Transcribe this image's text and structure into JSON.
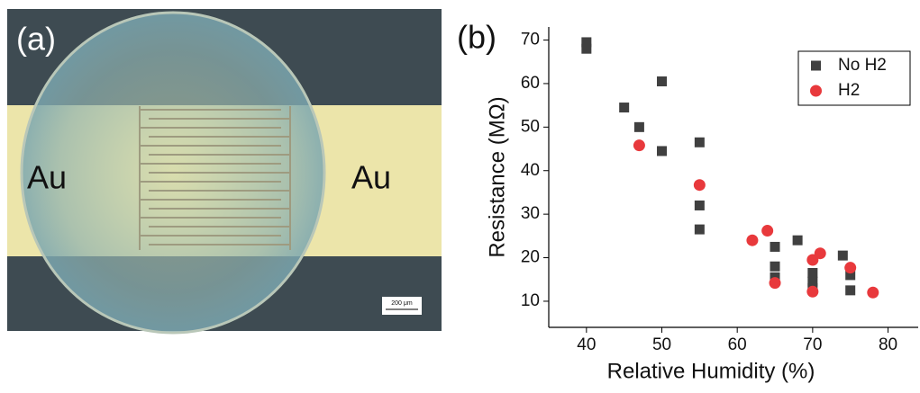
{
  "photo": {
    "label": "(a)",
    "left_label": "Au",
    "right_label": "Au",
    "scale_bar": "200 μm"
  },
  "chart_data": {
    "type": "scatter",
    "panel_label": "(b)",
    "x_label": "Relative Humidity (%)",
    "y_label": "Resistance (MΩ)",
    "xlim": [
      35,
      84
    ],
    "ylim": [
      4,
      73
    ],
    "xticks": [
      40,
      50,
      60,
      70,
      80
    ],
    "yticks": [
      10,
      20,
      30,
      40,
      50,
      60,
      70
    ],
    "legend": "top-right",
    "series": [
      {
        "name": "No H2",
        "color": "#404040",
        "marker": "square",
        "x": [
          40,
          40,
          45,
          47,
          50,
          50,
          55,
          55,
          55,
          65,
          65,
          65,
          68,
          70,
          70,
          70,
          74,
          75,
          75
        ],
        "values": [
          69.5,
          68,
          54.5,
          50,
          60.5,
          44.5,
          46.5,
          32,
          26.5,
          22.5,
          18,
          15.5,
          24,
          16.5,
          14.5,
          13,
          20.5,
          16,
          12.5
        ]
      },
      {
        "name": "H2",
        "color": "#e8393c",
        "marker": "circle",
        "x": [
          47,
          55,
          62,
          64,
          65,
          70,
          70,
          71,
          75,
          78
        ],
        "values": [
          45.8,
          36.7,
          24,
          26.2,
          14.2,
          19.5,
          12.2,
          21,
          17.7,
          12
        ]
      }
    ]
  }
}
